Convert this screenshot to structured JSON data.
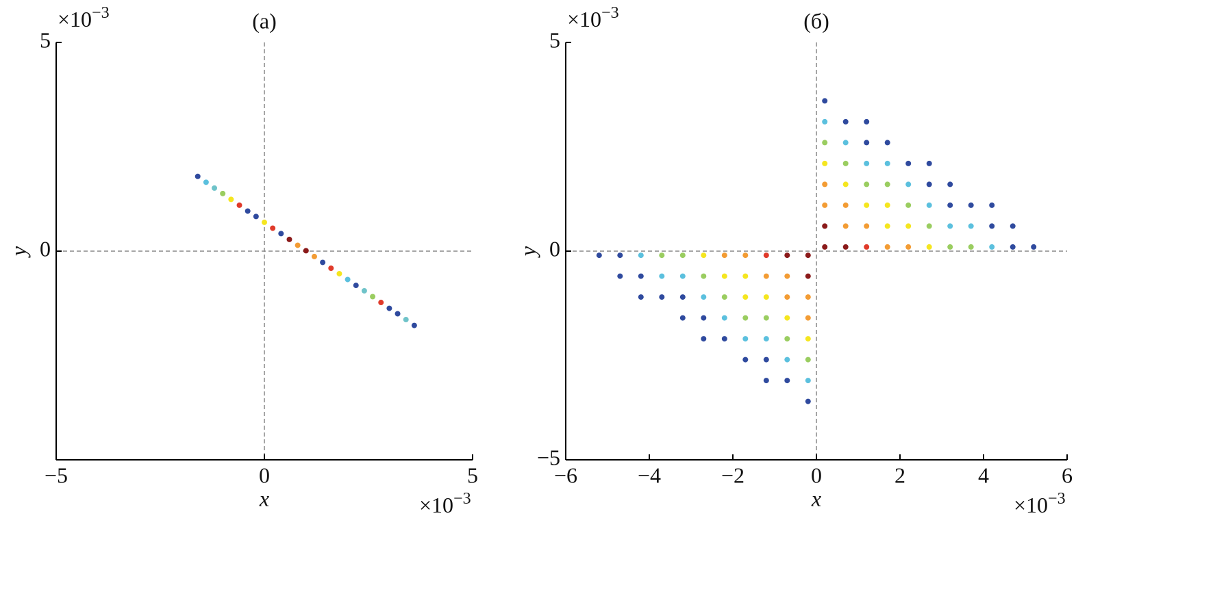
{
  "chart_data": [
    {
      "type": "scatter",
      "title": "(а)",
      "xlabel": "x",
      "ylabel": "y",
      "x_multiplier": {
        "base": "×10",
        "exponent": "−3"
      },
      "y_multiplier": {
        "base": "×10",
        "exponent": "−3"
      },
      "xlim": [
        -5,
        5
      ],
      "ylim": [
        -5,
        5
      ],
      "xticks": [
        {
          "value": -5,
          "label": "−5"
        },
        0,
        5
      ],
      "yticks": [
        0,
        5
      ],
      "x": [
        -1.6,
        -1.4,
        -1.2,
        -1.0,
        -0.8,
        -0.6,
        -0.4,
        -0.2,
        0,
        0.2,
        0.4,
        0.6,
        0.8,
        1.0,
        1.2,
        1.4,
        1.6,
        1.8,
        2.0,
        2.2,
        2.4,
        2.6,
        2.8,
        3.0,
        3.2,
        3.4,
        3.6
      ],
      "y": [
        1.79,
        1.65,
        1.51,
        1.38,
        1.24,
        1.1,
        0.96,
        0.83,
        0.69,
        0.55,
        0.42,
        0.28,
        0.14,
        0.01,
        -0.13,
        -0.27,
        -0.41,
        -0.54,
        -0.68,
        -0.82,
        -0.95,
        -1.09,
        -1.23,
        -1.37,
        -1.5,
        -1.64,
        -1.78
      ],
      "colors": [
        "#2f4a9e",
        "#5bc0de",
        "#6fc3c9",
        "#9acd60",
        "#f5e61f",
        "#e03a2a",
        "#2f4a9e",
        "#2f4a9e",
        "#f5e61f",
        "#e03a2a",
        "#2f4a9e",
        "#8b1a1a",
        "#f39c34",
        "#8b1a1a",
        "#f39c34",
        "#2f4a9e",
        "#e03a2a",
        "#f5e61f",
        "#5bc0de",
        "#2f4a9e",
        "#6fc3c9",
        "#9acd60",
        "#e03a2a",
        "#2f4a9e",
        "#2f4a9e",
        "#6fc3c9",
        "#2f4a9e"
      ]
    },
    {
      "type": "scatter",
      "title": "(б)",
      "xlabel": "x",
      "ylabel": "y",
      "x_multiplier": {
        "base": "×10",
        "exponent": "−3"
      },
      "y_multiplier": {
        "base": "×10",
        "exponent": "−3"
      },
      "xlim": [
        -6,
        6
      ],
      "ylim": [
        -5,
        5
      ],
      "xticks": [
        {
          "value": -6,
          "label": "−6"
        },
        {
          "value": -4,
          "label": "−4"
        },
        {
          "value": -2,
          "label": "−2"
        },
        0,
        2,
        4,
        6
      ],
      "yticks": [
        {
          "value": -5,
          "label": "−5"
        },
        0,
        5
      ],
      "x": [
        0.2,
        0.2,
        0.2,
        0.2,
        0.2,
        0.2,
        0.2,
        0.2,
        0.7,
        0.7,
        0.7,
        0.7,
        0.7,
        0.7,
        0.7,
        1.2,
        1.2,
        1.2,
        1.2,
        1.2,
        1.2,
        1.2,
        1.7,
        1.7,
        1.7,
        1.7,
        1.7,
        1.7,
        2.2,
        2.2,
        2.2,
        2.2,
        2.2,
        2.7,
        2.7,
        2.7,
        2.7,
        2.7,
        3.2,
        3.2,
        3.2,
        3.2,
        3.7,
        3.7,
        3.7,
        4.2,
        4.2,
        4.2,
        4.7,
        4.7,
        5.2,
        -0.2,
        -0.2,
        -0.2,
        -0.2,
        -0.2,
        -0.2,
        -0.2,
        -0.2,
        -0.7,
        -0.7,
        -0.7,
        -0.7,
        -0.7,
        -0.7,
        -0.7,
        -1.2,
        -1.2,
        -1.2,
        -1.2,
        -1.2,
        -1.2,
        -1.2,
        -1.7,
        -1.7,
        -1.7,
        -1.7,
        -1.7,
        -1.7,
        -2.2,
        -2.2,
        -2.2,
        -2.2,
        -2.2,
        -2.7,
        -2.7,
        -2.7,
        -2.7,
        -2.7,
        -3.2,
        -3.2,
        -3.2,
        -3.2,
        -3.7,
        -3.7,
        -3.7,
        -4.2,
        -4.2,
        -4.2,
        -4.7,
        -4.7,
        -5.2
      ],
      "y": [
        0.1,
        0.6,
        1.1,
        1.6,
        2.1,
        2.6,
        3.1,
        3.6,
        0.1,
        0.6,
        1.1,
        1.6,
        2.1,
        2.6,
        3.1,
        0.1,
        0.6,
        1.1,
        1.6,
        2.1,
        2.6,
        3.1,
        0.1,
        0.6,
        1.1,
        1.6,
        2.1,
        2.6,
        0.1,
        0.6,
        1.1,
        1.6,
        2.1,
        0.1,
        0.6,
        1.1,
        1.6,
        2.1,
        0.1,
        0.6,
        1.1,
        1.6,
        0.1,
        0.6,
        1.1,
        0.1,
        0.6,
        1.1,
        0.1,
        0.6,
        0.1,
        -0.1,
        -0.6,
        -1.1,
        -1.6,
        -2.1,
        -2.6,
        -3.1,
        -3.6,
        -0.1,
        -0.6,
        -1.1,
        -1.6,
        -2.1,
        -2.6,
        -3.1,
        -0.1,
        -0.6,
        -1.1,
        -1.6,
        -2.1,
        -2.6,
        -3.1,
        -0.1,
        -0.6,
        -1.1,
        -1.6,
        -2.1,
        -2.6,
        -0.1,
        -0.6,
        -1.1,
        -1.6,
        -2.1,
        -0.1,
        -0.6,
        -1.1,
        -1.6,
        -2.1,
        -0.1,
        -0.6,
        -1.1,
        -1.6,
        -0.1,
        -0.6,
        -1.1,
        -0.1,
        -0.6,
        -1.1,
        -0.1,
        -0.6,
        -0.1
      ],
      "colors": [
        "#8b1a1a",
        "#8b1a1a",
        "#f39c34",
        "#f39c34",
        "#f5e61f",
        "#9acd60",
        "#5bc0de",
        "#2f4a9e",
        "#8b1a1a",
        "#f39c34",
        "#f39c34",
        "#f5e61f",
        "#9acd60",
        "#5bc0de",
        "#2f4a9e",
        "#e03a2a",
        "#f39c34",
        "#f5e61f",
        "#9acd60",
        "#5bc0de",
        "#2f4a9e",
        "#2f4a9e",
        "#f39c34",
        "#f5e61f",
        "#f5e61f",
        "#9acd60",
        "#5bc0de",
        "#2f4a9e",
        "#f39c34",
        "#f5e61f",
        "#9acd60",
        "#5bc0de",
        "#2f4a9e",
        "#f5e61f",
        "#9acd60",
        "#5bc0de",
        "#2f4a9e",
        "#2f4a9e",
        "#9acd60",
        "#5bc0de",
        "#2f4a9e",
        "#2f4a9e",
        "#9acd60",
        "#5bc0de",
        "#2f4a9e",
        "#5bc0de",
        "#2f4a9e",
        "#2f4a9e",
        "#2f4a9e",
        "#2f4a9e",
        "#2f4a9e",
        "#8b1a1a",
        "#8b1a1a",
        "#f39c34",
        "#f39c34",
        "#f5e61f",
        "#9acd60",
        "#5bc0de",
        "#2f4a9e",
        "#8b1a1a",
        "#f39c34",
        "#f39c34",
        "#f5e61f",
        "#9acd60",
        "#5bc0de",
        "#2f4a9e",
        "#e03a2a",
        "#f39c34",
        "#f5e61f",
        "#9acd60",
        "#5bc0de",
        "#2f4a9e",
        "#2f4a9e",
        "#f39c34",
        "#f5e61f",
        "#f5e61f",
        "#9acd60",
        "#5bc0de",
        "#2f4a9e",
        "#f39c34",
        "#f5e61f",
        "#9acd60",
        "#5bc0de",
        "#2f4a9e",
        "#f5e61f",
        "#9acd60",
        "#5bc0de",
        "#2f4a9e",
        "#2f4a9e",
        "#9acd60",
        "#5bc0de",
        "#2f4a9e",
        "#2f4a9e",
        "#9acd60",
        "#5bc0de",
        "#2f4a9e",
        "#5bc0de",
        "#2f4a9e",
        "#2f4a9e",
        "#2f4a9e",
        "#2f4a9e",
        "#2f4a9e"
      ]
    }
  ]
}
